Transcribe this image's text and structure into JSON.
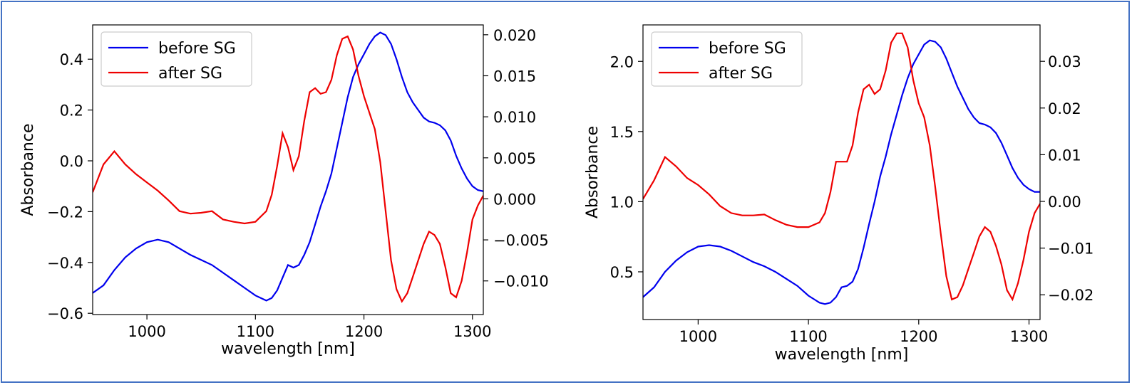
{
  "chart_data": [
    {
      "type": "line",
      "title": "",
      "xlabel": "wavelength [nm]",
      "ylabel": "Absorbance",
      "xlim": [
        950,
        1310
      ],
      "ylim": [
        -0.605,
        0.535
      ],
      "y2lim": [
        -0.0141,
        0.0212
      ],
      "xticks": [
        1000,
        1100,
        1200,
        1300
      ],
      "xtick_labels": [
        "1000",
        "1100",
        "1200",
        "1300"
      ],
      "yticks": [
        -0.6,
        -0.4,
        -0.2,
        0.0,
        0.2,
        0.4
      ],
      "ytick_labels": [
        "−0.6",
        "−0.4",
        "−0.2",
        "0.0",
        "0.2",
        "0.4"
      ],
      "y2ticks": [
        -0.01,
        -0.005,
        0.0,
        0.005,
        0.01,
        0.015,
        0.02
      ],
      "y2tick_labels": [
        "−0.010",
        "−0.005",
        "0.000",
        "0.005",
        "0.010",
        "0.015",
        "0.020"
      ],
      "grid": false,
      "legend_position": "top-left",
      "x": [
        950,
        960,
        970,
        980,
        990,
        1000,
        1010,
        1020,
        1030,
        1040,
        1050,
        1060,
        1070,
        1080,
        1090,
        1100,
        1110,
        1115,
        1120,
        1125,
        1130,
        1135,
        1140,
        1145,
        1150,
        1155,
        1160,
        1165,
        1170,
        1175,
        1180,
        1185,
        1190,
        1195,
        1200,
        1205,
        1210,
        1215,
        1220,
        1225,
        1230,
        1235,
        1240,
        1245,
        1250,
        1255,
        1260,
        1265,
        1270,
        1275,
        1280,
        1285,
        1290,
        1295,
        1300,
        1305,
        1310
      ],
      "series": [
        {
          "name": "before SG",
          "color": "#0000ee",
          "axis": "left",
          "values": [
            -0.52,
            -0.49,
            -0.43,
            -0.38,
            -0.345,
            -0.32,
            -0.31,
            -0.32,
            -0.345,
            -0.37,
            -0.39,
            -0.41,
            -0.44,
            -0.47,
            -0.5,
            -0.53,
            -0.55,
            -0.54,
            -0.51,
            -0.46,
            -0.41,
            -0.42,
            -0.41,
            -0.37,
            -0.32,
            -0.25,
            -0.18,
            -0.12,
            -0.05,
            0.05,
            0.15,
            0.25,
            0.33,
            0.38,
            0.42,
            0.46,
            0.49,
            0.505,
            0.495,
            0.46,
            0.4,
            0.33,
            0.27,
            0.23,
            0.2,
            0.17,
            0.155,
            0.15,
            0.14,
            0.12,
            0.08,
            0.02,
            -0.03,
            -0.07,
            -0.1,
            -0.115,
            -0.12
          ]
        },
        {
          "name": "after SG",
          "color": "#ee0000",
          "axis": "right",
          "values": [
            0.0008,
            0.0042,
            0.0058,
            0.0042,
            0.003,
            0.002,
            0.001,
            -0.0002,
            -0.0015,
            -0.0018,
            -0.0017,
            -0.0015,
            -0.0025,
            -0.0028,
            -0.003,
            -0.0028,
            -0.0015,
            0.0005,
            0.004,
            0.008,
            0.0063,
            0.0035,
            0.0052,
            0.0095,
            0.013,
            0.0135,
            0.0128,
            0.013,
            0.0145,
            0.0175,
            0.0195,
            0.0198,
            0.0182,
            0.015,
            0.0125,
            0.0105,
            0.0085,
            0.0045,
            -0.0015,
            -0.0075,
            -0.011,
            -0.0125,
            -0.0115,
            -0.0095,
            -0.0075,
            -0.0055,
            -0.004,
            -0.0044,
            -0.0055,
            -0.0083,
            -0.0115,
            -0.012,
            -0.01,
            -0.0065,
            -0.0025,
            -0.0008,
            0.0004
          ]
        }
      ]
    },
    {
      "type": "line",
      "title": "",
      "xlabel": "wavelength [nm]",
      "ylabel": "Absorbance",
      "xlim": [
        950,
        1310
      ],
      "ylim": [
        0.16,
        2.26
      ],
      "y2lim": [
        -0.0253,
        0.0378
      ],
      "xticks": [
        1000,
        1100,
        1200,
        1300
      ],
      "xtick_labels": [
        "1000",
        "1100",
        "1200",
        "1300"
      ],
      "yticks": [
        0.5,
        1.0,
        1.5,
        2.0
      ],
      "ytick_labels": [
        "0.5",
        "1.0",
        "1.5",
        "2.0"
      ],
      "y2ticks": [
        -0.02,
        -0.01,
        0.0,
        0.01,
        0.02,
        0.03
      ],
      "y2tick_labels": [
        "−0.02",
        "−0.01",
        "0.00",
        "0.01",
        "0.02",
        "0.03"
      ],
      "grid": false,
      "legend_position": "top-left",
      "x": [
        950,
        960,
        970,
        980,
        990,
        1000,
        1010,
        1020,
        1030,
        1040,
        1050,
        1060,
        1070,
        1080,
        1090,
        1100,
        1110,
        1115,
        1120,
        1125,
        1130,
        1135,
        1140,
        1145,
        1150,
        1155,
        1160,
        1165,
        1170,
        1175,
        1180,
        1185,
        1190,
        1195,
        1200,
        1205,
        1210,
        1215,
        1220,
        1225,
        1230,
        1235,
        1240,
        1245,
        1250,
        1255,
        1260,
        1265,
        1270,
        1275,
        1280,
        1285,
        1290,
        1295,
        1300,
        1305,
        1310
      ],
      "series": [
        {
          "name": "before SG",
          "color": "#0000ee",
          "axis": "left",
          "values": [
            0.32,
            0.39,
            0.5,
            0.58,
            0.64,
            0.68,
            0.69,
            0.68,
            0.65,
            0.61,
            0.57,
            0.54,
            0.5,
            0.45,
            0.4,
            0.33,
            0.28,
            0.27,
            0.28,
            0.32,
            0.39,
            0.4,
            0.43,
            0.52,
            0.67,
            0.84,
            1.0,
            1.18,
            1.32,
            1.48,
            1.62,
            1.76,
            1.88,
            1.98,
            2.05,
            2.12,
            2.15,
            2.14,
            2.1,
            2.02,
            1.92,
            1.82,
            1.74,
            1.66,
            1.6,
            1.56,
            1.55,
            1.53,
            1.49,
            1.42,
            1.33,
            1.24,
            1.17,
            1.12,
            1.09,
            1.07,
            1.07
          ]
        },
        {
          "name": "after SG",
          "color": "#ee0000",
          "axis": "right",
          "values": [
            0.0005,
            0.0045,
            0.0095,
            0.0075,
            0.005,
            0.0035,
            0.0015,
            -0.001,
            -0.0025,
            -0.003,
            -0.003,
            -0.0028,
            -0.004,
            -0.005,
            -0.0055,
            -0.0055,
            -0.0045,
            -0.0025,
            0.002,
            0.0085,
            0.0085,
            0.0085,
            0.012,
            0.019,
            0.024,
            0.025,
            0.023,
            0.024,
            0.028,
            0.034,
            0.036,
            0.036,
            0.033,
            0.026,
            0.021,
            0.018,
            0.012,
            0.003,
            -0.007,
            -0.016,
            -0.021,
            -0.0205,
            -0.018,
            -0.0145,
            -0.011,
            -0.0075,
            -0.0055,
            -0.0065,
            -0.0095,
            -0.0135,
            -0.019,
            -0.021,
            -0.0175,
            -0.0125,
            -0.0065,
            -0.0025,
            -0.0005
          ]
        }
      ]
    }
  ]
}
